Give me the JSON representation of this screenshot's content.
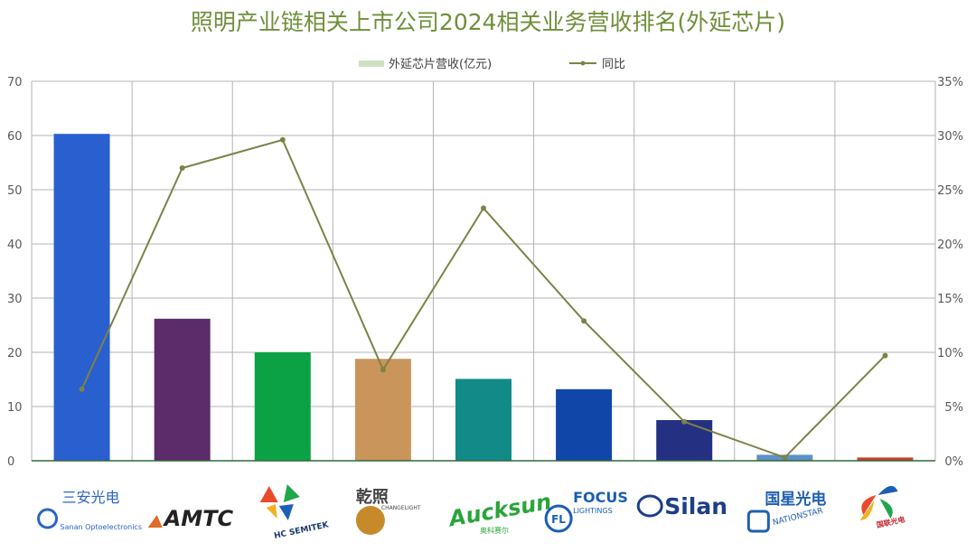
{
  "chart_data": {
    "type": "bar",
    "title": "照明产业链相关上市公司2024相关业务营收排名(外延芯片)",
    "legend": [
      {
        "name": "外延芯片营收(亿元)",
        "kind": "bar"
      },
      {
        "name": "同比",
        "kind": "line"
      }
    ],
    "legend_position": "top-center",
    "grid": true,
    "categories": [
      "三安光电",
      "AMTC",
      "HC SEMITEK",
      "乾照",
      "Aucksun",
      "FOCUS LIGHTINGS",
      "Silan",
      "国星光电",
      "国联光电"
    ],
    "series": [
      {
        "name": "外延芯片营收(亿元)",
        "type": "bar",
        "axis": "left",
        "values": [
          60.3,
          26.2,
          20.0,
          18.8,
          15.1,
          13.2,
          7.5,
          1.1,
          0.6
        ],
        "colors": [
          "#2a5fcf",
          "#5c2b6a",
          "#0aa245",
          "#c9955a",
          "#128a87",
          "#0f46a8",
          "#243182",
          "#5e91c5",
          "#c8402d"
        ]
      },
      {
        "name": "同比",
        "type": "line",
        "axis": "right",
        "values": [
          6.6,
          27.0,
          29.6,
          8.4,
          23.3,
          12.9,
          3.6,
          0.3,
          9.7
        ],
        "color": "#7d8246"
      }
    ],
    "y_left": {
      "min": 0,
      "max": 70,
      "ticks": [
        "0",
        "10",
        "20",
        "30",
        "40",
        "50",
        "60",
        "70"
      ]
    },
    "y_right": {
      "min": 0,
      "max": 35,
      "ticks": [
        "0%",
        "5%",
        "10%",
        "15%",
        "20%",
        "25%",
        "30%",
        "35%"
      ]
    },
    "logos": [
      {
        "name": "三安光电",
        "subtitle": "Sanan Optoelectronics",
        "color": "#2b64c8"
      },
      {
        "name": "AMTC",
        "color": "#222222",
        "accent": "#e06a28"
      },
      {
        "name": "HC SEMITEK",
        "color": "#1a3a6e"
      },
      {
        "name": "乾照",
        "subtitle": "CHANGELIGHT",
        "color": "#444444",
        "accent": "#c78a2a"
      },
      {
        "name": "Aucksun",
        "subtitle": "奥科赛尔",
        "color": "#2aa43a",
        "accent": "#f0a000"
      },
      {
        "name": "FOCUS",
        "subtitle": "LIGHTINGS",
        "color": "#1a5fb4"
      },
      {
        "name": "Silan",
        "color": "#1d3f8a"
      },
      {
        "name": "国星光电",
        "subtitle": "NATIONSTAR",
        "color": "#1f5fb0"
      },
      {
        "name": "国联光电",
        "color": "#c0262c"
      }
    ],
    "colors": {
      "title": "#6f8f3a",
      "grid": "#b3b3b3",
      "axis_text": "#595959",
      "baseline": "#2f6b3a"
    }
  }
}
